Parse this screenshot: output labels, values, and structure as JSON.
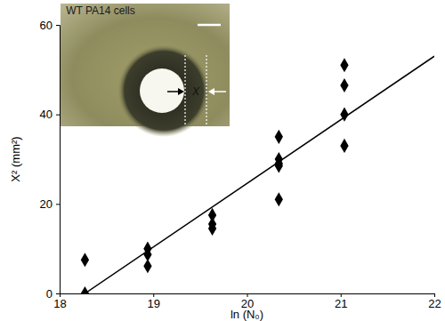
{
  "chart_data": {
    "type": "scatter",
    "x_label": "ln (N₀)",
    "y_label": "X² (mm²)",
    "annotations": [
      "WT PA14 cells",
      "X"
    ],
    "xlim": [
      18,
      22
    ],
    "xticks": [
      18,
      19,
      20,
      21,
      22
    ],
    "ylim": [
      0,
      60
    ],
    "yticks": [
      0,
      20,
      40,
      60
    ],
    "series": [
      {
        "type": "scatter",
        "marker": "diamond",
        "color": "#000000",
        "x": [
          18.27,
          18.27,
          18.94,
          18.94,
          18.94,
          19.63,
          19.63,
          19.63,
          20.34,
          20.34,
          20.34,
          20.34,
          20.34,
          21.04,
          21.04,
          21.04,
          21.04
        ],
        "values": [
          7.5,
          0,
          10,
          8.7,
          6.1,
          17.5,
          15.5,
          14.5,
          35,
          30,
          29,
          28.5,
          21,
          51,
          46.5,
          40,
          33
        ]
      },
      {
        "type": "line",
        "line_style": "solid",
        "color": "#000000",
        "x": [
          18.27,
          22
        ],
        "values": [
          0,
          53
        ]
      }
    ]
  }
}
